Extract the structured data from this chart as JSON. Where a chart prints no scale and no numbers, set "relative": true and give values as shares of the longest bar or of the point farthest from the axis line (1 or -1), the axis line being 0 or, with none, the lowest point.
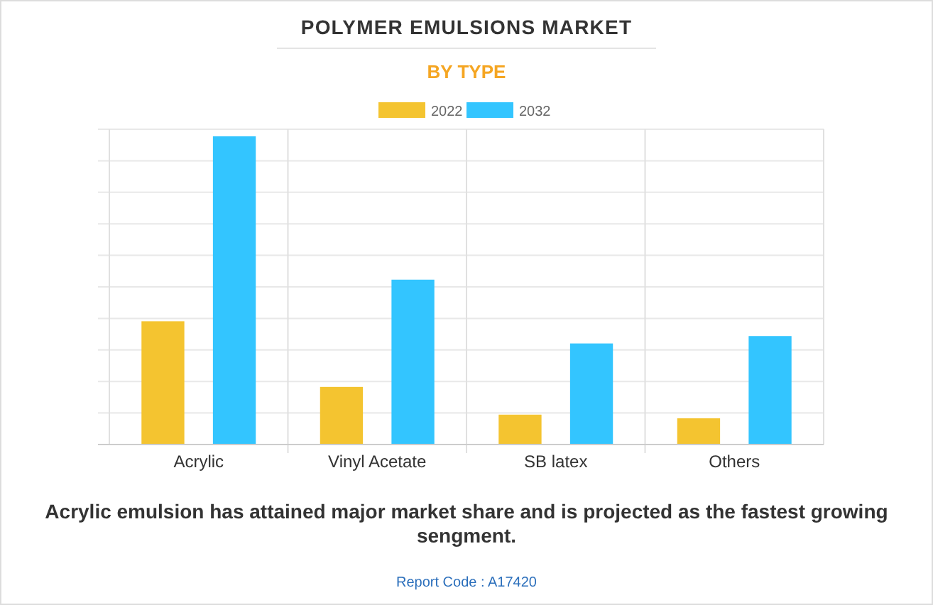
{
  "chart_data": {
    "type": "bar",
    "title": "POLYMER EMULSIONS MARKET",
    "subtitle": "BY TYPE",
    "categories": [
      "Acrylic",
      "Vinyl Acetate",
      "SB latex",
      "Others"
    ],
    "relative": true,
    "grid": true,
    "legend": "top",
    "series": [
      {
        "name": "2022",
        "color": "#f4c430",
        "values": [
          0.4,
          0.187,
          0.097,
          0.085
        ]
      },
      {
        "name": "2032",
        "color": "#33c5ff",
        "values": [
          1,
          0.535,
          0.328,
          0.352
        ]
      }
    ],
    "annotations": [
      "Acrylic emulsion has attained major market share and is projected as the fastest growing sengment.",
      "Report Code : A17420"
    ]
  }
}
